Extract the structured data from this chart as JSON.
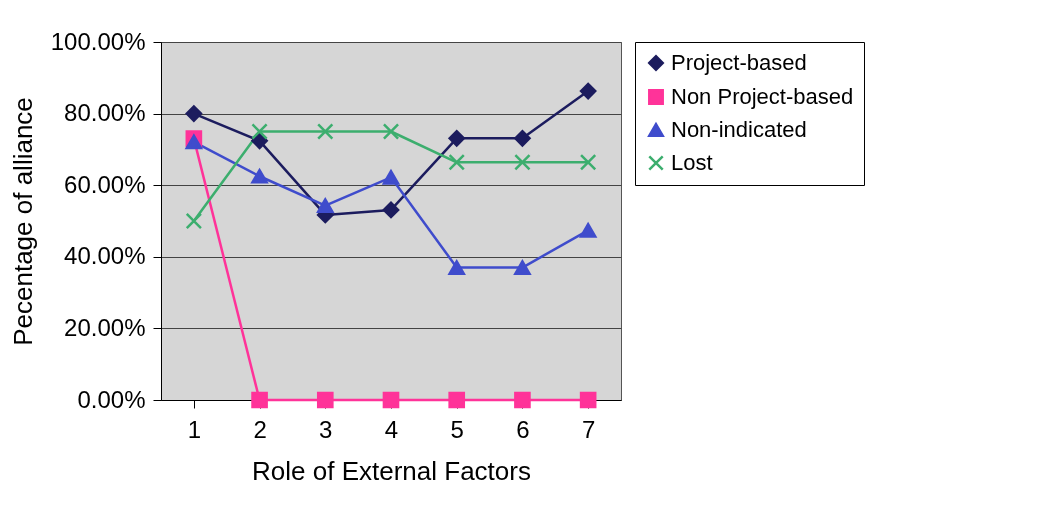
{
  "chart_data": {
    "type": "line",
    "xlabel": "Role of External  Factors",
    "ylabel": "Pecentage of alliance",
    "categories": [
      "1",
      "2",
      "3",
      "4",
      "5",
      "6",
      "7"
    ],
    "series": [
      {
        "name": "Project-based",
        "color": "#1c1c5e",
        "marker": "diamond",
        "values": [
          80,
          72.4,
          51.7,
          53.1,
          73.1,
          73.1,
          86.3
        ]
      },
      {
        "name": "Non Project-based",
        "color": "#ff3399",
        "marker": "square",
        "values": [
          73,
          0,
          0,
          0,
          0,
          0,
          0
        ]
      },
      {
        "name": "Non-indicated",
        "color": "#3f4ccc",
        "marker": "triangle",
        "values": [
          72.1,
          62.5,
          54.3,
          62.2,
          37,
          37,
          47.4
        ]
      },
      {
        "name": "Lost",
        "color": "#3cae6e",
        "marker": "cross",
        "values": [
          50,
          75,
          75,
          75,
          66.4,
          66.4,
          66.4
        ]
      }
    ],
    "ylim": [
      0,
      100
    ],
    "yticks": [
      {
        "value": 0,
        "label": "0.00%"
      },
      {
        "value": 20,
        "label": "20.00%"
      },
      {
        "value": 40,
        "label": "40.00%"
      },
      {
        "value": 60,
        "label": "60.00%"
      },
      {
        "value": 80,
        "label": "80.00%"
      },
      {
        "value": 100,
        "label": "100.00%"
      }
    ],
    "grid": "y",
    "legend": "right"
  }
}
